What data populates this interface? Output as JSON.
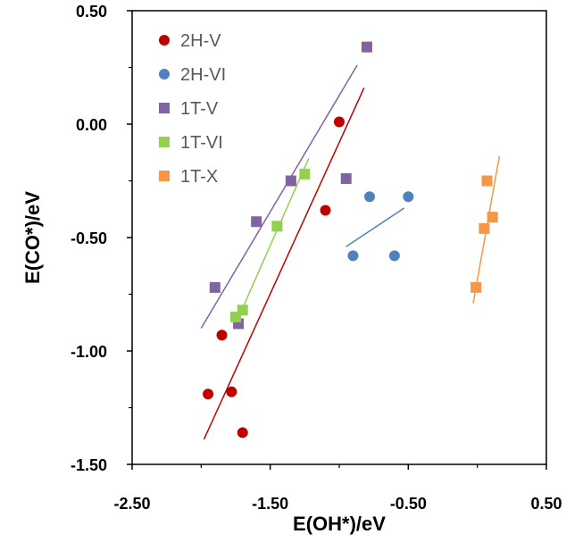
{
  "chart_data": {
    "type": "scatter",
    "title": "",
    "xlabel": "E(OH*)/eV",
    "ylabel": "E(CO*)/eV",
    "xlim": [
      -2.5,
      0.5
    ],
    "ylim": [
      -1.5,
      0.5
    ],
    "x_ticks": [
      -2.5,
      -1.5,
      -0.5,
      0.5
    ],
    "x_tick_labels": [
      "-2.50",
      "-1.50",
      "-0.50",
      "0.50"
    ],
    "y_ticks": [
      0.5,
      0.0,
      -0.5,
      -1.0,
      -1.5
    ],
    "y_tick_labels": [
      "0.50",
      "0.00",
      "-0.50",
      "-1.00",
      "-1.50"
    ],
    "grid": false,
    "legend_position": "top-left",
    "series": [
      {
        "name": "2H-V",
        "marker": "circle",
        "color": "#C00000",
        "points": [
          [
            -1.0,
            0.01
          ],
          [
            -1.1,
            -0.38
          ],
          [
            -1.85,
            -0.93
          ],
          [
            -1.95,
            -1.19
          ],
          [
            -1.78,
            -1.18
          ],
          [
            -1.7,
            -1.36
          ]
        ],
        "trendline": [
          [
            -1.98,
            -1.39
          ],
          [
            -0.82,
            0.16
          ]
        ]
      },
      {
        "name": "2H-VI",
        "marker": "circle",
        "color": "#4F81BD",
        "points": [
          [
            -0.78,
            -0.32
          ],
          [
            -0.5,
            -0.32
          ],
          [
            -0.9,
            -0.58
          ],
          [
            -0.6,
            -0.58
          ]
        ],
        "trendline": [
          [
            -0.95,
            -0.54
          ],
          [
            -0.53,
            -0.37
          ]
        ]
      },
      {
        "name": "1T-V",
        "marker": "square",
        "color": "#8064A2",
        "points": [
          [
            -0.8,
            0.34
          ],
          [
            -0.95,
            -0.24
          ],
          [
            -1.35,
            -0.25
          ],
          [
            -1.6,
            -0.43
          ],
          [
            -1.9,
            -0.72
          ],
          [
            -1.73,
            -0.88
          ]
        ],
        "trendline": [
          [
            -2.0,
            -0.9
          ],
          [
            -0.87,
            0.26
          ]
        ]
      },
      {
        "name": "1T-VI",
        "marker": "square",
        "color": "#92D050",
        "points": [
          [
            -1.25,
            -0.22
          ],
          [
            -1.45,
            -0.45
          ],
          [
            -1.75,
            -0.85
          ],
          [
            -1.7,
            -0.82
          ]
        ],
        "trendline": [
          [
            -1.75,
            -0.88
          ],
          [
            -1.22,
            -0.15
          ]
        ]
      },
      {
        "name": "1T-X",
        "marker": "square",
        "color": "#F79646",
        "points": [
          [
            0.07,
            -0.25
          ],
          [
            0.05,
            -0.46
          ],
          [
            0.11,
            -0.41
          ],
          [
            -0.01,
            -0.72
          ]
        ],
        "trendline": [
          [
            -0.03,
            -0.79
          ],
          [
            0.16,
            -0.14
          ]
        ]
      }
    ]
  }
}
